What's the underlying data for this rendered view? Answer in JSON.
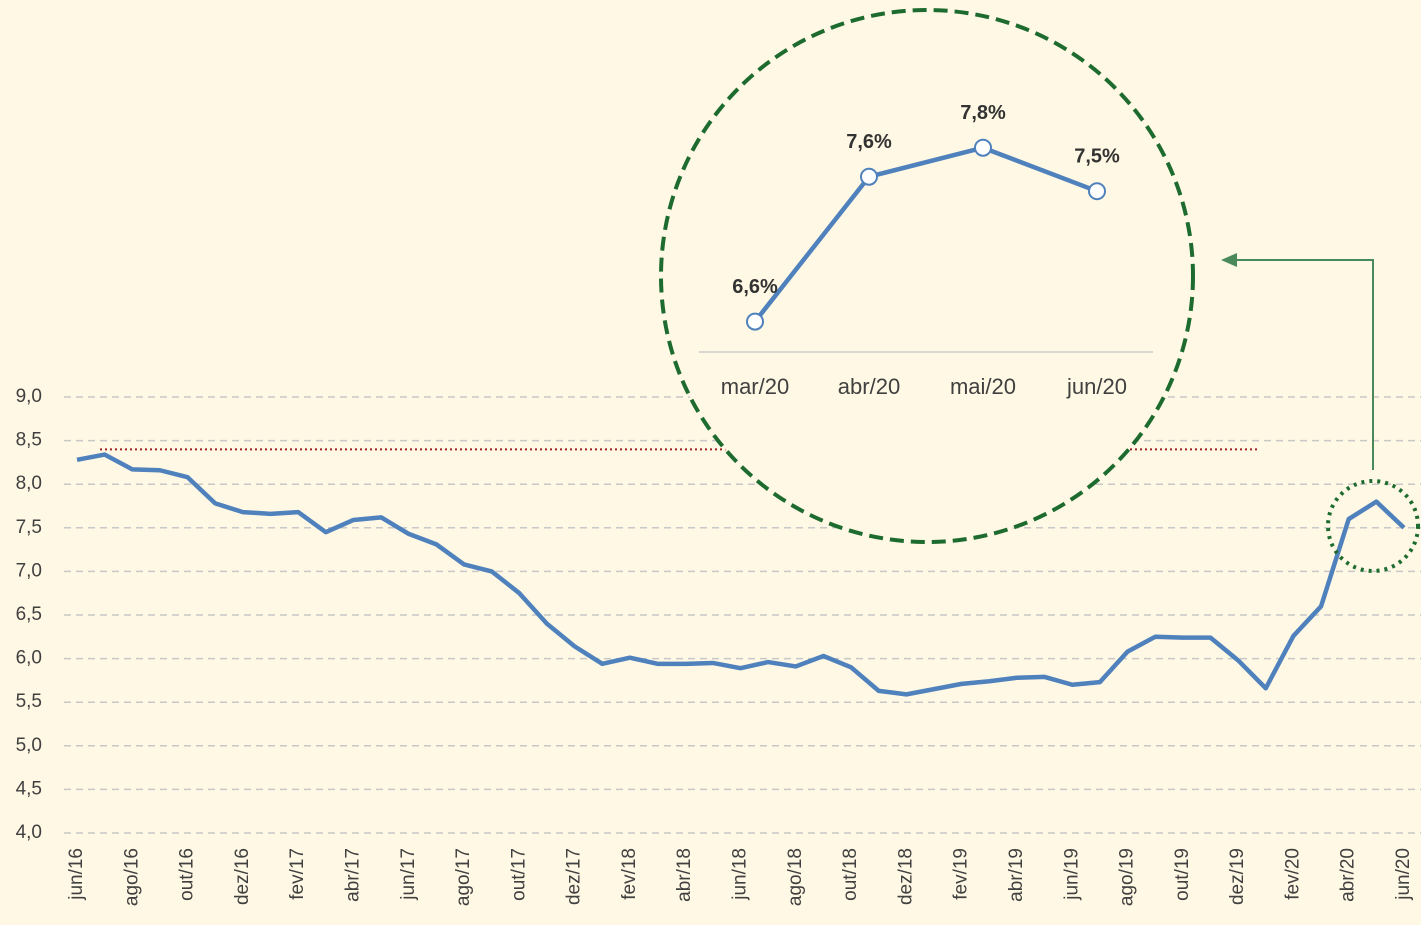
{
  "chart_data": [
    {
      "type": "line",
      "categories": [
        "jun/16",
        null,
        "ago/16",
        null,
        "out/16",
        null,
        "dez/16",
        null,
        "fev/17",
        null,
        "abr/17",
        null,
        "jun/17",
        null,
        "ago/17",
        null,
        "out/17",
        null,
        "dez/17",
        null,
        "fev/18",
        null,
        "abr/18",
        null,
        "jun/18",
        null,
        "ago/18",
        null,
        "out/18",
        null,
        "dez/18",
        null,
        "fev/19",
        null,
        "abr/19",
        null,
        "jun/19",
        null,
        "ago/19",
        null,
        "out/19",
        null,
        "dez/19",
        null,
        "fev/20",
        null,
        "abr/20",
        null,
        "jun/20"
      ],
      "values": [
        8.28,
        8.34,
        8.17,
        8.16,
        8.08,
        7.78,
        7.68,
        7.66,
        7.68,
        7.45,
        7.59,
        7.62,
        7.43,
        7.31,
        7.08,
        7.0,
        6.75,
        6.4,
        6.14,
        5.94,
        6.01,
        5.94,
        5.94,
        5.95,
        5.89,
        5.96,
        5.91,
        6.03,
        5.9,
        5.63,
        5.59,
        5.65,
        5.71,
        5.74,
        5.78,
        5.79,
        5.7,
        5.73,
        6.08,
        6.25,
        6.24,
        6.24,
        5.98,
        5.66,
        6.26,
        6.6,
        7.6,
        7.8,
        7.5
      ],
      "color": "#4f81bd",
      "reference": 8.4,
      "reference_color": "#a02020",
      "ylim": [
        4.0,
        9.0
      ],
      "yticks": [
        {
          "value": 4.0,
          "label": "4,0"
        },
        {
          "value": 4.5,
          "label": "4,5"
        },
        {
          "value": 5.0,
          "label": "5,0"
        },
        {
          "value": 5.5,
          "label": "5,5"
        },
        {
          "value": 6.0,
          "label": "6,0"
        },
        {
          "value": 6.5,
          "label": "6,5"
        },
        {
          "value": 7.0,
          "label": "7,0"
        },
        {
          "value": 7.5,
          "label": "7,5"
        },
        {
          "value": 8.0,
          "label": "8,0"
        },
        {
          "value": 8.5,
          "label": "8,5"
        },
        {
          "value": 9.0,
          "label": "9,0"
        }
      ],
      "grid": true
    },
    {
      "type": "line",
      "categories": [
        "mar/20",
        "abr/20",
        "mai/20",
        "jun/20"
      ],
      "values": [
        6.6,
        7.6,
        7.8,
        7.5
      ],
      "value_labels": [
        "6,6%",
        "7,6%",
        "7,8%",
        "7,5%"
      ],
      "color": "#4f81bd",
      "ylim": [
        6.39,
        7.95
      ]
    }
  ]
}
